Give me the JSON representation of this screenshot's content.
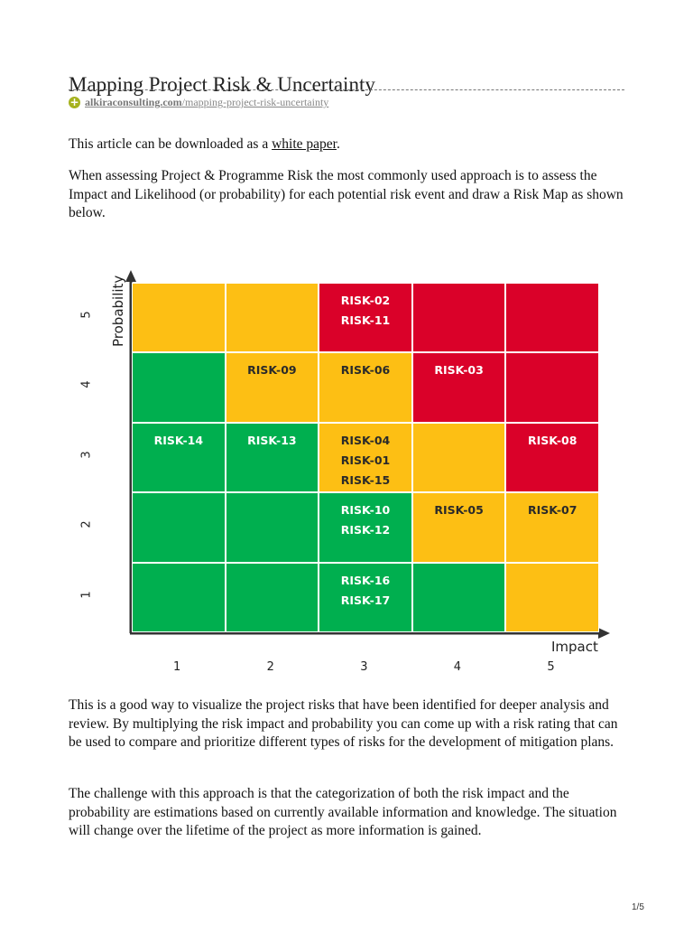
{
  "title": "Mapping Project Risk & Uncertainty",
  "source": {
    "domain": "alkiraconsulting.com",
    "path": "/mapping-project-risk-uncertainty"
  },
  "intro": {
    "before": "This article can be downloaded as a ",
    "link": "white paper",
    "after": "."
  },
  "paragraphs": [
    "When assessing Project & Programme Risk the most commonly used approach is to assess the Impact and Likelihood (or probability) for each potential risk event and draw a Risk Map as shown below.",
    "This is a good way to visualize the project risks that have been identified for deeper analysis and review. By multiplying the risk impact and probability you can come up with a risk rating that can be used to compare and prioritize different types of risks for the development of mitigation plans.",
    "The challenge with this approach is that the categorization of both the risk impact and the probability are estimations based on currently available information and knowledge. The situation will change over the lifetime of the project as more information is gained."
  ],
  "chart_data": {
    "type": "heatmap",
    "xlabel": "Impact",
    "ylabel": "Probability",
    "x_ticks": [
      "1",
      "2",
      "3",
      "4",
      "5"
    ],
    "y_ticks": [
      "1",
      "2",
      "3",
      "4",
      "5"
    ],
    "colors": {
      "green": "#00AF4F",
      "amber": "#FDBF14",
      "red": "#DA0129"
    },
    "rows_top_to_bottom": [
      {
        "probability": 5,
        "levels": [
          "amber",
          "amber",
          "red",
          "red",
          "red"
        ]
      },
      {
        "probability": 4,
        "levels": [
          "green",
          "amber",
          "amber",
          "red",
          "red"
        ]
      },
      {
        "probability": 3,
        "levels": [
          "green",
          "green",
          "amber",
          "amber",
          "red"
        ]
      },
      {
        "probability": 2,
        "levels": [
          "green",
          "green",
          "green",
          "amber",
          "amber"
        ]
      },
      {
        "probability": 1,
        "levels": [
          "green",
          "green",
          "green",
          "green",
          "amber"
        ]
      }
    ],
    "risks": [
      {
        "impact": 3,
        "probability": 5,
        "labels": [
          "RISK-02",
          "RISK-11"
        ]
      },
      {
        "impact": 2,
        "probability": 4,
        "labels": [
          "RISK-09"
        ]
      },
      {
        "impact": 3,
        "probability": 4,
        "labels": [
          "RISK-06"
        ]
      },
      {
        "impact": 4,
        "probability": 4,
        "labels": [
          "RISK-03"
        ]
      },
      {
        "impact": 1,
        "probability": 3,
        "labels": [
          "RISK-14"
        ]
      },
      {
        "impact": 2,
        "probability": 3,
        "labels": [
          "RISK-13"
        ]
      },
      {
        "impact": 3,
        "probability": 3,
        "labels": [
          "RISK-04",
          "RISK-01",
          "RISK-15"
        ]
      },
      {
        "impact": 5,
        "probability": 3,
        "labels": [
          "RISK-08"
        ]
      },
      {
        "impact": 3,
        "probability": 2,
        "labels": [
          "RISK-10",
          "RISK-12"
        ]
      },
      {
        "impact": 4,
        "probability": 2,
        "labels": [
          "RISK-05"
        ]
      },
      {
        "impact": 5,
        "probability": 2,
        "labels": [
          "RISK-07"
        ]
      },
      {
        "impact": 3,
        "probability": 1,
        "labels": [
          "RISK-16",
          "RISK-17"
        ]
      }
    ]
  },
  "footer": {
    "page": "1/5"
  }
}
